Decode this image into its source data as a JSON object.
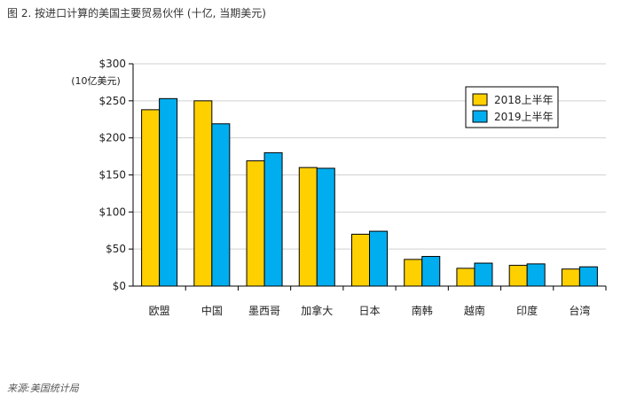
{
  "figure": {
    "title": "图 2. 按进口计算的美国主要贸易伙伴 (十亿, 当期美元)",
    "source": "来源:美国统计局"
  },
  "chart_data": {
    "type": "bar",
    "categories": [
      "欧盟",
      "中国",
      "墨西哥",
      "加拿大",
      "日本",
      "南韩",
      "越南",
      "印度",
      "台湾"
    ],
    "series": [
      {
        "name": "2018上半年",
        "color": "#FFD000",
        "values": [
          238,
          250,
          169,
          160,
          70,
          36,
          24,
          28,
          23
        ]
      },
      {
        "name": "2019上半年",
        "color": "#00AEEF",
        "values": [
          253,
          219,
          180,
          159,
          74,
          40,
          31,
          30,
          26
        ]
      }
    ],
    "yunit": "(10亿美元)",
    "ylim": [
      0,
      300
    ],
    "yticks": [
      0,
      50,
      100,
      150,
      200,
      250,
      300
    ],
    "ytick_labels": [
      "$0",
      "$50",
      "$100",
      "$150",
      "$200",
      "$250",
      "$300"
    ],
    "grid": true,
    "legend_position": "top-right"
  }
}
